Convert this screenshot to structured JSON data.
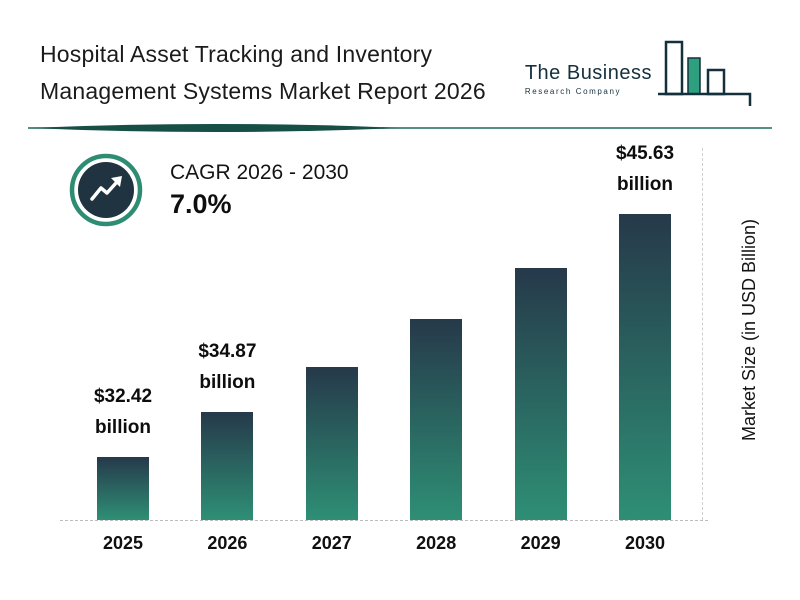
{
  "title": {
    "line1": "Hospital Asset Tracking and Inventory",
    "line2": "Management Systems Market Report 2026"
  },
  "logo": {
    "line1": "The Business",
    "line2": "Research Company"
  },
  "cagr": {
    "label": "CAGR 2026 - 2030",
    "value": "7.0%"
  },
  "chart_data": {
    "type": "bar",
    "title": "Hospital Asset Tracking and Inventory Management Systems Market Report 2026",
    "categories": [
      "2025",
      "2026",
      "2027",
      "2028",
      "2029",
      "2030"
    ],
    "values": [
      32.42,
      34.87,
      37.31,
      39.92,
      42.71,
      45.63
    ],
    "bar_labels": [
      [
        "$32.42",
        "billion"
      ],
      [
        "$34.87",
        "billion"
      ],
      null,
      null,
      null,
      [
        "$45.63",
        "billion"
      ]
    ],
    "xlabel": "",
    "ylabel": "Market Size (in USD Billion)",
    "ylim": [
      29,
      46
    ],
    "grid": "off",
    "legend": "none",
    "cagr_annotation": "CAGR 2026 - 2030 : 7.0%"
  },
  "colors": {
    "bar_top": "#26394a",
    "bar_bottom": "#2e8f75",
    "accent_teal": "#1d6b5c",
    "divider_dark": "#154f46",
    "logo_dark": "#14303d",
    "logo_green": "#2fa07f",
    "icon_circle_fill": "#1f3340",
    "icon_ring": "#2e8c72"
  }
}
